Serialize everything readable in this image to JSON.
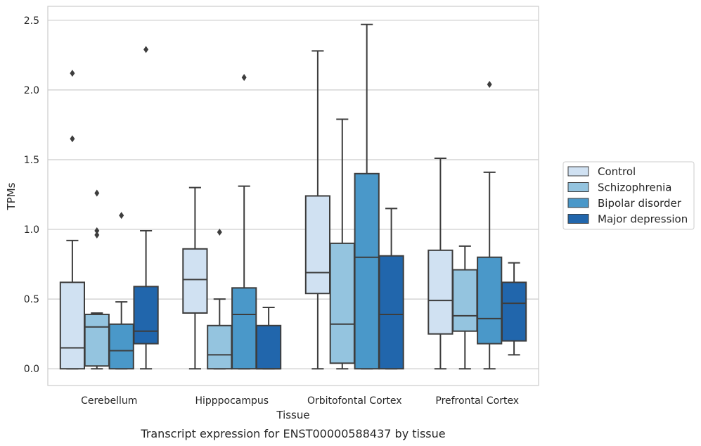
{
  "caption": "Transcript expression for ENST00000588437 by tissue",
  "chart_data": {
    "type": "box",
    "xlabel": "Tissue",
    "ylabel": "TPMs",
    "ylim": [
      -0.12,
      2.6
    ],
    "yticks": [
      0.0,
      0.5,
      1.0,
      1.5,
      2.0,
      2.5
    ],
    "ytick_labels": [
      "0.0",
      "0.5",
      "1.0",
      "1.5",
      "2.0",
      "2.5"
    ],
    "grid": "horizontal",
    "legend_position": "right",
    "categories": [
      "Cerebellum",
      "Hipppocampus",
      "Orbitofontal Cortex",
      "Prefrontal Cortex"
    ],
    "series": [
      {
        "name": "Control",
        "color": "#d0e1f2",
        "boxes": [
          {
            "whislo": 0.0,
            "q1": 0.0,
            "med": 0.15,
            "q3": 0.62,
            "whishi": 0.92,
            "fliers": [
              1.65,
              2.12
            ]
          },
          {
            "whislo": 0.0,
            "q1": 0.4,
            "med": 0.64,
            "q3": 0.86,
            "whishi": 1.3,
            "fliers": []
          },
          {
            "whislo": 0.0,
            "q1": 0.54,
            "med": 0.69,
            "q3": 1.24,
            "whishi": 2.28,
            "fliers": []
          },
          {
            "whislo": 0.0,
            "q1": 0.25,
            "med": 0.49,
            "q3": 0.85,
            "whishi": 1.51,
            "fliers": []
          }
        ]
      },
      {
        "name": "Schizophrenia",
        "color": "#94c4df",
        "boxes": [
          {
            "whislo": 0.0,
            "q1": 0.02,
            "med": 0.3,
            "q3": 0.39,
            "whishi": 0.4,
            "fliers": [
              0.96,
              0.99,
              1.26
            ]
          },
          {
            "whislo": 0.0,
            "q1": 0.0,
            "med": 0.1,
            "q3": 0.31,
            "whishi": 0.5,
            "fliers": [
              0.98
            ]
          },
          {
            "whislo": 0.0,
            "q1": 0.04,
            "med": 0.32,
            "q3": 0.9,
            "whishi": 1.79,
            "fliers": []
          },
          {
            "whislo": 0.0,
            "q1": 0.27,
            "med": 0.38,
            "q3": 0.71,
            "whishi": 0.88,
            "fliers": []
          }
        ]
      },
      {
        "name": "Bipolar disorder",
        "color": "#4a98c9",
        "boxes": [
          {
            "whislo": 0.0,
            "q1": 0.0,
            "med": 0.13,
            "q3": 0.32,
            "whishi": 0.48,
            "fliers": [
              1.1
            ]
          },
          {
            "whislo": 0.0,
            "q1": 0.0,
            "med": 0.39,
            "q3": 0.58,
            "whishi": 1.31,
            "fliers": [
              2.09
            ]
          },
          {
            "whislo": 0.0,
            "q1": 0.0,
            "med": 0.8,
            "q3": 1.4,
            "whishi": 2.47,
            "fliers": []
          },
          {
            "whislo": 0.0,
            "q1": 0.18,
            "med": 0.36,
            "q3": 0.8,
            "whishi": 1.41,
            "fliers": [
              2.04
            ]
          }
        ]
      },
      {
        "name": "Major depression",
        "color": "#2166ac",
        "boxes": [
          {
            "whislo": 0.0,
            "q1": 0.18,
            "med": 0.27,
            "q3": 0.59,
            "whishi": 0.99,
            "fliers": [
              2.29
            ]
          },
          {
            "whislo": 0.0,
            "q1": 0.0,
            "med": 0.0,
            "q3": 0.31,
            "whishi": 0.44,
            "fliers": []
          },
          {
            "whislo": 0.0,
            "q1": 0.0,
            "med": 0.39,
            "q3": 0.81,
            "whishi": 1.15,
            "fliers": []
          },
          {
            "whislo": 0.1,
            "q1": 0.2,
            "med": 0.47,
            "q3": 0.62,
            "whishi": 0.76,
            "fliers": []
          }
        ]
      }
    ]
  }
}
